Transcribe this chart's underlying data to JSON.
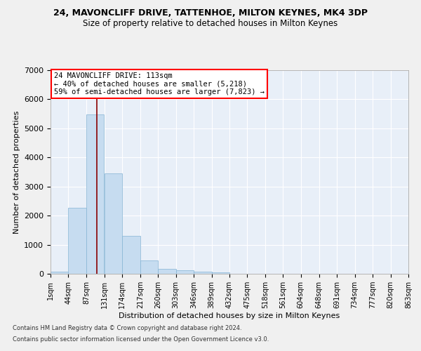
{
  "title1": "24, MAVONCLIFF DRIVE, TATTENHOE, MILTON KEYNES, MK4 3DP",
  "title2": "Size of property relative to detached houses in Milton Keynes",
  "xlabel": "Distribution of detached houses by size in Milton Keynes",
  "ylabel": "Number of detached properties",
  "footer1": "Contains HM Land Registry data © Crown copyright and database right 2024.",
  "footer2": "Contains public sector information licensed under the Open Government Licence v3.0.",
  "annotation_line1": "24 MAVONCLIFF DRIVE: 113sqm",
  "annotation_line2": "← 40% of detached houses are smaller (5,218)",
  "annotation_line3": "59% of semi-detached houses are larger (7,823) →",
  "property_size": 113,
  "bar_color": "#c6dcf0",
  "bar_edgecolor": "#85b4d4",
  "vline_color": "#8b0000",
  "bg_color": "#e8eff8",
  "grid_color": "#ffffff",
  "fig_bg_color": "#f0f0f0",
  "bins_start": [
    1,
    44,
    87,
    131,
    174,
    217,
    260,
    303,
    346,
    389,
    432,
    475,
    518,
    561,
    604,
    648,
    691,
    734,
    777,
    820
  ],
  "bin_width": 43,
  "bar_heights": [
    80,
    2280,
    5480,
    3450,
    1310,
    470,
    160,
    110,
    70,
    55,
    0,
    0,
    0,
    0,
    0,
    0,
    0,
    0,
    0,
    0
  ],
  "ylim": [
    0,
    7000
  ],
  "yticks": [
    0,
    1000,
    2000,
    3000,
    4000,
    5000,
    6000,
    7000
  ],
  "xlim_min": 1,
  "xlim_max": 863
}
